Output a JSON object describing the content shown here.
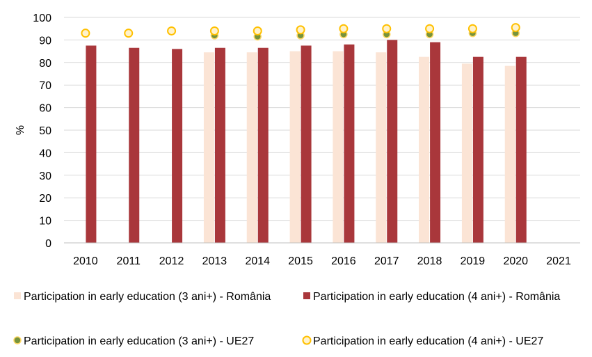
{
  "chart_data": {
    "type": "bar",
    "ylabel": "%",
    "ylim": [
      0,
      100
    ],
    "yticks": [
      0,
      10,
      20,
      30,
      40,
      50,
      60,
      70,
      80,
      90,
      100
    ],
    "grid": true,
    "legend_position": "bottom",
    "categories": [
      "2010",
      "2011",
      "2012",
      "2013",
      "2014",
      "2015",
      "2016",
      "2017",
      "2018",
      "2019",
      "2020",
      "2021"
    ],
    "series": [
      {
        "name": "Participation in early education (3 ani+) - România",
        "kind": "bar",
        "color": "#fbe4d5",
        "values": [
          null,
          null,
          null,
          84.5,
          84.5,
          85,
          85,
          84.5,
          82.5,
          79.5,
          78.5,
          null
        ]
      },
      {
        "name": "Participation in early education (4 ani+) - România",
        "kind": "bar",
        "color": "#a9373b",
        "values": [
          87.5,
          86.5,
          86,
          86.5,
          86.5,
          87.5,
          88,
          90,
          89,
          82.5,
          82.5,
          null
        ]
      },
      {
        "name": "Participation in early education (3 ani+) - UE27",
        "kind": "marker",
        "color": "#77933c",
        "values": [
          null,
          null,
          null,
          92,
          91.5,
          92,
          92.5,
          92.5,
          92.5,
          93,
          93,
          null
        ]
      },
      {
        "name": "Participation in early education (4 ani+) - UE27",
        "kind": "marker",
        "color": "#ffd966",
        "values": [
          93,
          93,
          94,
          94,
          94,
          94.5,
          95,
          95,
          95,
          95,
          95.5,
          null
        ]
      }
    ]
  }
}
